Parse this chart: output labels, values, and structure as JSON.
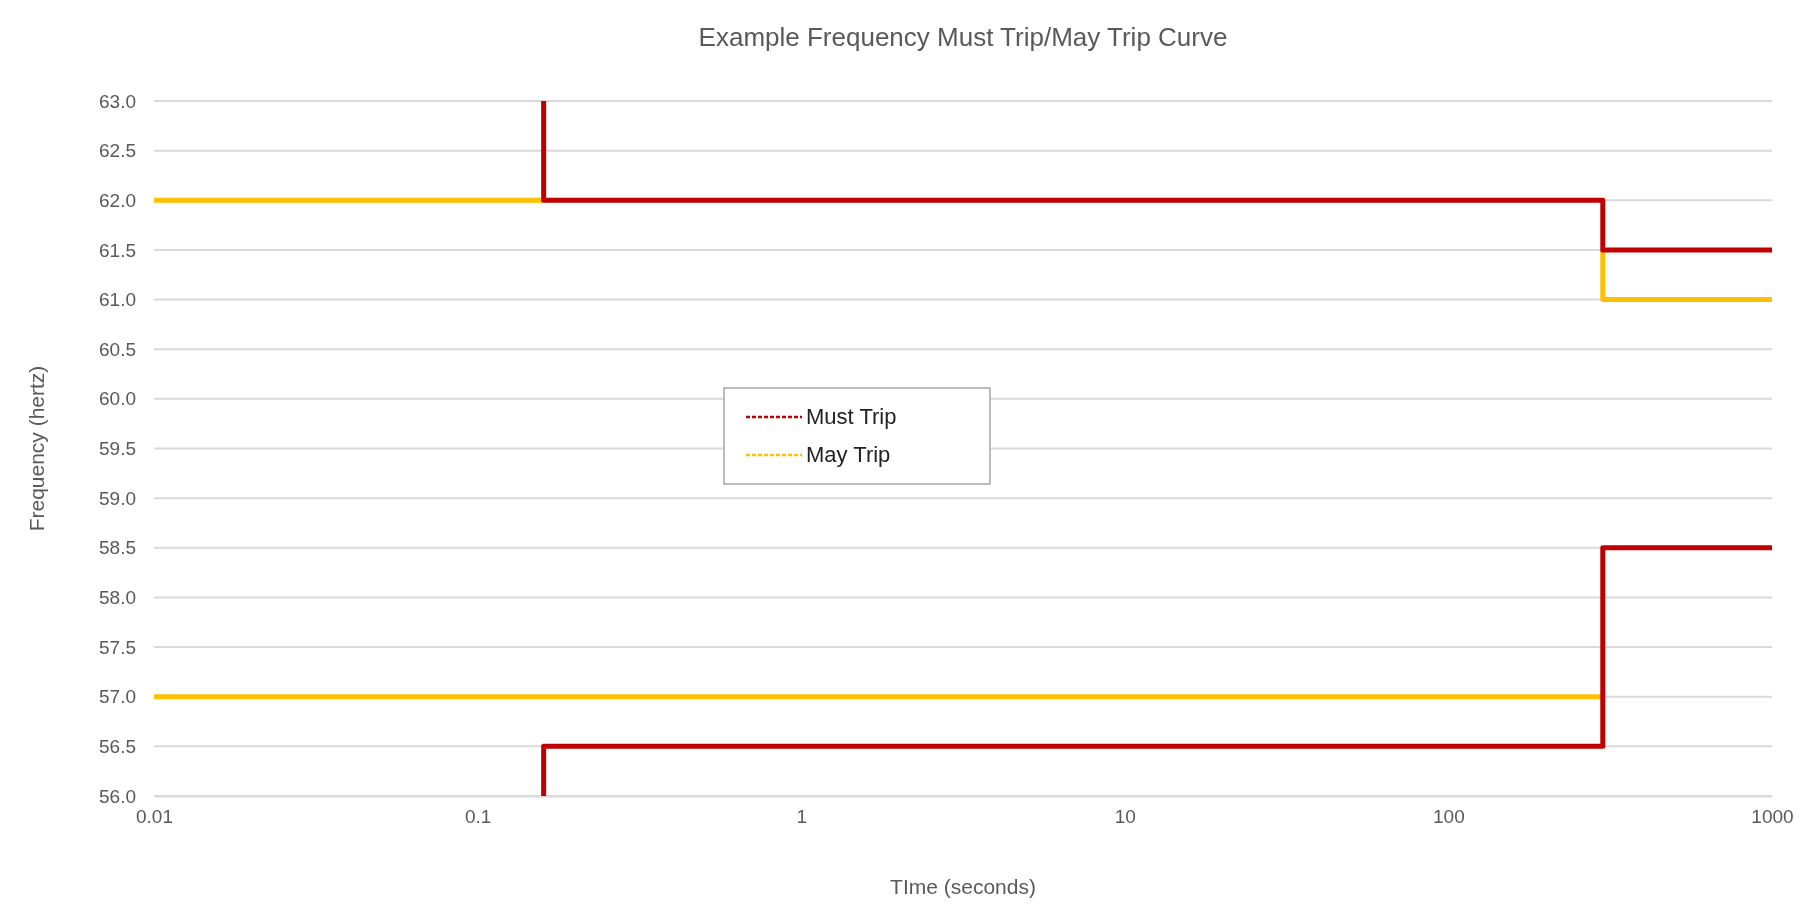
{
  "chart_data": {
    "type": "line",
    "title": "Example Frequency Must Trip/May Trip Curve",
    "xlabel": "TIme (seconds)",
    "ylabel": "Frequency (hertz)",
    "log": "x",
    "xlim": [
      0.01,
      1000
    ],
    "xticks": [
      0.01,
      0.1,
      1,
      10,
      100,
      1000
    ],
    "ylim": [
      56,
      63
    ],
    "yticks": [
      {
        "value": 56,
        "label": "56.0"
      },
      {
        "value": 56.5,
        "label": "56.5"
      },
      {
        "value": 57,
        "label": "57.0"
      },
      {
        "value": 57.5,
        "label": "57.5"
      },
      {
        "value": 58,
        "label": "58.0"
      },
      {
        "value": 58.5,
        "label": "58.5"
      },
      {
        "value": 59,
        "label": "59.0"
      },
      {
        "value": 59.5,
        "label": "59.5"
      },
      {
        "value": 60,
        "label": "60.0"
      },
      {
        "value": 60.5,
        "label": "60.5"
      },
      {
        "value": 61,
        "label": "61.0"
      },
      {
        "value": 61.5,
        "label": "61.5"
      },
      {
        "value": 62,
        "label": "62.0"
      },
      {
        "value": 62.5,
        "label": "62.5"
      },
      {
        "value": 63,
        "label": "63.0"
      }
    ],
    "grid": "y",
    "legend": "left",
    "marker": "none",
    "line_style": "solid",
    "series": [
      {
        "name": "May Trip",
        "color": "#ffc000",
        "x": [
          0.01,
          0.16,
          null,
          300,
          300,
          1000,
          null,
          0.01,
          300
        ],
        "values": [
          62,
          62,
          null,
          61.5,
          61,
          61,
          null,
          57,
          57
        ]
      },
      {
        "name": "Must Trip",
        "color": "#c00000",
        "x": [
          0.16,
          0.16,
          300,
          300,
          1000,
          null,
          0.16,
          0.16,
          300,
          300,
          1000
        ],
        "values": [
          63,
          62,
          62,
          61.5,
          61.5,
          null,
          56,
          56.5,
          56.5,
          58.5,
          58.5
        ]
      }
    ]
  }
}
